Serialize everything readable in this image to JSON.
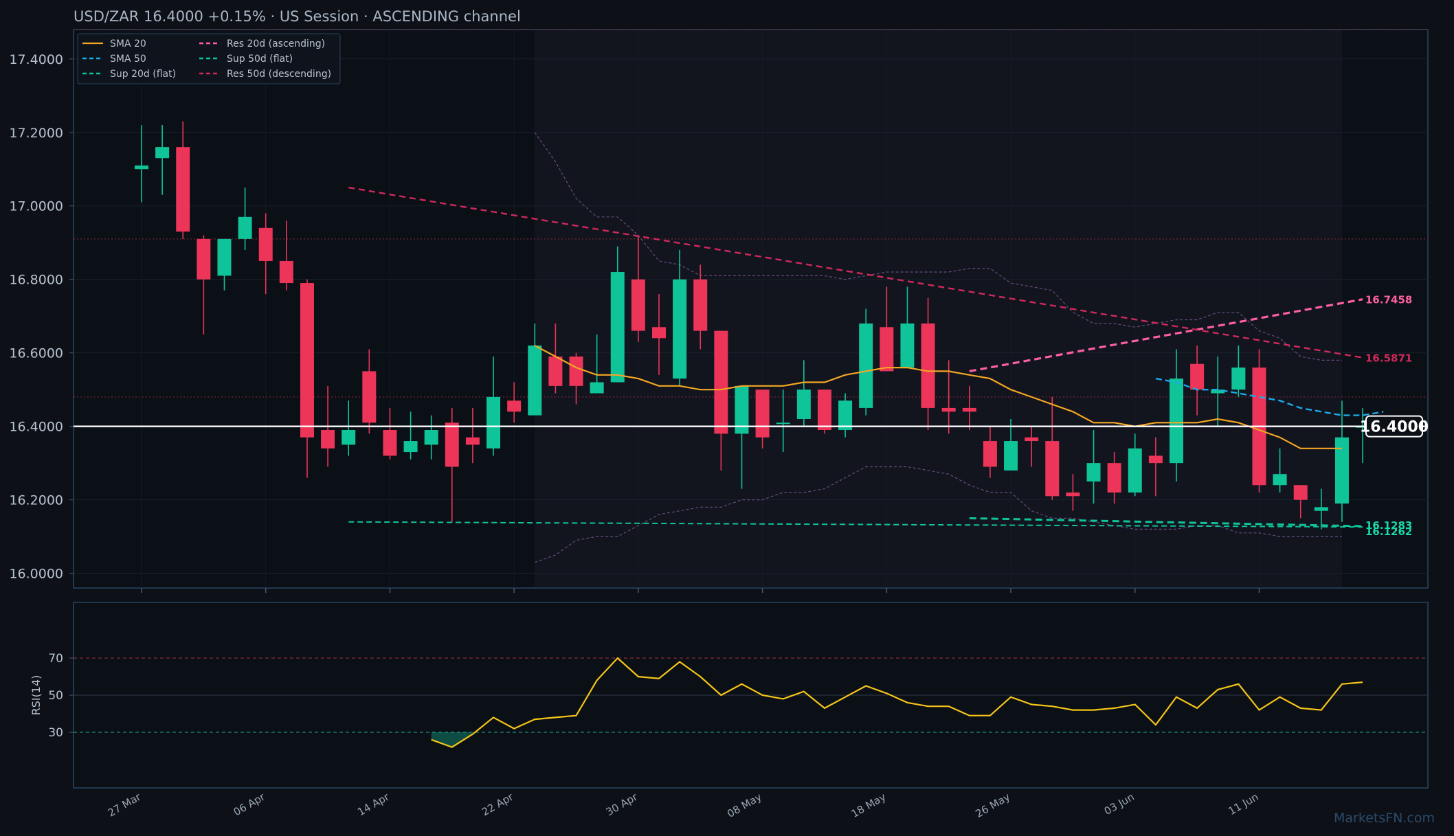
{
  "header": {
    "title": "USD/ZAR   16.4000   +0.15%  ·  US Session  ·  ASCENDING channel"
  },
  "watermark": "MarketsFN.com",
  "colors": {
    "background": "#0d1117",
    "panel_border": "#2a4560",
    "up_candle": "#10c49a",
    "down_candle": "#ec3558",
    "sma20": "#f5a623",
    "sma50": "#1ba9e8",
    "res20": "#ff5fa0",
    "res50": "#d0295c",
    "sup": "#10c49a",
    "rsi": "#f5c518",
    "band": "#7a5a9a",
    "price_line": "#ffffff"
  },
  "chart_data": [
    {
      "type": "candlestick",
      "instrument": "USD/ZAR",
      "last_price": "16.4000",
      "change": "+0.15%",
      "session": "US Session",
      "channel": "ASCENDING channel",
      "ylim": [
        15.96,
        17.48
      ],
      "y_ticks": [
        "16.0000",
        "16.2000",
        "16.4000",
        "16.6000",
        "16.8000",
        "17.0000",
        "17.2000",
        "17.4000"
      ],
      "y_tick_values": [
        16.0,
        16.2,
        16.4,
        16.6,
        16.8,
        17.0,
        17.2,
        17.4
      ],
      "x_ticks": [
        "27 Mar",
        "06 Apr",
        "14 Apr",
        "22 Apr",
        "30 Apr",
        "08 May",
        "18 May",
        "26 May",
        "03 Jun",
        "11 Jun"
      ],
      "x_tick_index": [
        0,
        6,
        12,
        18,
        24,
        30,
        36,
        42,
        48,
        54
      ],
      "candles": [
        {
          "o": 17.1,
          "h": 17.22,
          "l": 17.01,
          "c": 17.11
        },
        {
          "o": 17.13,
          "h": 17.22,
          "l": 17.03,
          "c": 17.16
        },
        {
          "o": 17.16,
          "h": 17.23,
          "l": 16.91,
          "c": 16.93
        },
        {
          "o": 16.91,
          "h": 16.92,
          "l": 16.65,
          "c": 16.8
        },
        {
          "o": 16.81,
          "h": 16.91,
          "l": 16.77,
          "c": 16.91
        },
        {
          "o": 16.91,
          "h": 17.05,
          "l": 16.88,
          "c": 16.97
        },
        {
          "o": 16.94,
          "h": 16.98,
          "l": 16.76,
          "c": 16.85
        },
        {
          "o": 16.85,
          "h": 16.96,
          "l": 16.77,
          "c": 16.79
        },
        {
          "o": 16.79,
          "h": 16.8,
          "l": 16.26,
          "c": 16.37
        },
        {
          "o": 16.39,
          "h": 16.51,
          "l": 16.29,
          "c": 16.34
        },
        {
          "o": 16.35,
          "h": 16.47,
          "l": 16.32,
          "c": 16.39
        },
        {
          "o": 16.55,
          "h": 16.61,
          "l": 16.38,
          "c": 16.41
        },
        {
          "o": 16.39,
          "h": 16.45,
          "l": 16.31,
          "c": 16.32
        },
        {
          "o": 16.33,
          "h": 16.44,
          "l": 16.31,
          "c": 16.36
        },
        {
          "o": 16.35,
          "h": 16.43,
          "l": 16.31,
          "c": 16.39
        },
        {
          "o": 16.41,
          "h": 16.45,
          "l": 16.14,
          "c": 16.29
        },
        {
          "o": 16.37,
          "h": 16.45,
          "l": 16.3,
          "c": 16.35
        },
        {
          "o": 16.34,
          "h": 16.59,
          "l": 16.32,
          "c": 16.48
        },
        {
          "o": 16.47,
          "h": 16.52,
          "l": 16.41,
          "c": 16.44
        },
        {
          "o": 16.43,
          "h": 16.68,
          "l": 16.43,
          "c": 16.62
        },
        {
          "o": 16.59,
          "h": 16.68,
          "l": 16.49,
          "c": 16.51
        },
        {
          "o": 16.59,
          "h": 16.6,
          "l": 16.46,
          "c": 16.51
        },
        {
          "o": 16.49,
          "h": 16.65,
          "l": 16.49,
          "c": 16.52
        },
        {
          "o": 16.52,
          "h": 16.89,
          "l": 16.52,
          "c": 16.82
        },
        {
          "o": 16.8,
          "h": 16.92,
          "l": 16.63,
          "c": 16.66
        },
        {
          "o": 16.67,
          "h": 16.76,
          "l": 16.54,
          "c": 16.64
        },
        {
          "o": 16.53,
          "h": 16.88,
          "l": 16.51,
          "c": 16.8
        },
        {
          "o": 16.8,
          "h": 16.84,
          "l": 16.61,
          "c": 16.66
        },
        {
          "o": 16.66,
          "h": 16.66,
          "l": 16.28,
          "c": 16.38
        },
        {
          "o": 16.38,
          "h": 16.51,
          "l": 16.23,
          "c": 16.51
        },
        {
          "o": 16.5,
          "h": 16.5,
          "l": 16.34,
          "c": 16.37
        },
        {
          "o": 16.41,
          "h": 16.5,
          "l": 16.33,
          "c": 16.41
        },
        {
          "o": 16.42,
          "h": 16.58,
          "l": 16.4,
          "c": 16.5
        },
        {
          "o": 16.5,
          "h": 16.5,
          "l": 16.38,
          "c": 16.39
        },
        {
          "o": 16.39,
          "h": 16.49,
          "l": 16.37,
          "c": 16.47
        },
        {
          "o": 16.45,
          "h": 16.72,
          "l": 16.43,
          "c": 16.68
        },
        {
          "o": 16.67,
          "h": 16.78,
          "l": 16.55,
          "c": 16.55
        },
        {
          "o": 16.56,
          "h": 16.78,
          "l": 16.56,
          "c": 16.68
        },
        {
          "o": 16.68,
          "h": 16.75,
          "l": 16.39,
          "c": 16.45
        },
        {
          "o": 16.45,
          "h": 16.58,
          "l": 16.38,
          "c": 16.44
        },
        {
          "o": 16.45,
          "h": 16.51,
          "l": 16.39,
          "c": 16.44
        },
        {
          "o": 16.36,
          "h": 16.4,
          "l": 16.26,
          "c": 16.29
        },
        {
          "o": 16.28,
          "h": 16.42,
          "l": 16.28,
          "c": 16.36
        },
        {
          "o": 16.37,
          "h": 16.4,
          "l": 16.29,
          "c": 16.36
        },
        {
          "o": 16.36,
          "h": 16.48,
          "l": 16.2,
          "c": 16.21
        },
        {
          "o": 16.22,
          "h": 16.27,
          "l": 16.17,
          "c": 16.21
        },
        {
          "o": 16.25,
          "h": 16.39,
          "l": 16.19,
          "c": 16.3
        },
        {
          "o": 16.3,
          "h": 16.33,
          "l": 16.19,
          "c": 16.22
        },
        {
          "o": 16.22,
          "h": 16.38,
          "l": 16.21,
          "c": 16.34
        },
        {
          "o": 16.32,
          "h": 16.37,
          "l": 16.21,
          "c": 16.3
        },
        {
          "o": 16.3,
          "h": 16.61,
          "l": 16.25,
          "c": 16.53
        },
        {
          "o": 16.57,
          "h": 16.62,
          "l": 16.43,
          "c": 16.5
        },
        {
          "o": 16.49,
          "h": 16.59,
          "l": 16.4,
          "c": 16.5
        },
        {
          "o": 16.5,
          "h": 16.62,
          "l": 16.48,
          "c": 16.56
        },
        {
          "o": 16.56,
          "h": 16.61,
          "l": 16.22,
          "c": 16.24
        },
        {
          "o": 16.24,
          "h": 16.34,
          "l": 16.22,
          "c": 16.27
        },
        {
          "o": 16.24,
          "h": 16.24,
          "l": 16.15,
          "c": 16.2
        },
        {
          "o": 16.17,
          "h": 16.23,
          "l": 16.12,
          "c": 16.18
        },
        {
          "o": 16.19,
          "h": 16.47,
          "l": 16.14,
          "c": 16.37
        },
        {
          "o": 16.4,
          "h": 16.45,
          "l": 16.3,
          "c": 16.4
        }
      ],
      "sma20": {
        "start_index": 19,
        "values": [
          16.62,
          16.59,
          16.56,
          16.54,
          16.54,
          16.53,
          16.51,
          16.51,
          16.5,
          16.5,
          16.51,
          16.51,
          16.51,
          16.52,
          16.52,
          16.54,
          16.55,
          16.56,
          16.56,
          16.55,
          16.55,
          16.54,
          16.53,
          16.5,
          16.48,
          16.46,
          16.44,
          16.41,
          16.41,
          16.4,
          16.41,
          16.41,
          16.41,
          16.42,
          16.41,
          16.39,
          16.37,
          16.34,
          16.34,
          16.34
        ]
      },
      "sma50": {
        "start_index": 49,
        "values": [
          16.53,
          16.52,
          16.5,
          16.5,
          16.49,
          16.48,
          16.47,
          16.45,
          16.44,
          16.43,
          16.43,
          16.44
        ]
      },
      "bands": {
        "start_index": 19,
        "upper": [
          17.2,
          17.12,
          17.02,
          16.97,
          16.97,
          16.92,
          16.85,
          16.84,
          16.81,
          16.81,
          16.81,
          16.81,
          16.81,
          16.81,
          16.81,
          16.8,
          16.81,
          16.82,
          16.82,
          16.82,
          16.82,
          16.83,
          16.83,
          16.79,
          16.78,
          16.77,
          16.71,
          16.68,
          16.68,
          16.67,
          16.68,
          16.69,
          16.69,
          16.71,
          16.71,
          16.66,
          16.64,
          16.59,
          16.58,
          16.58
        ],
        "lower": [
          16.03,
          16.05,
          16.09,
          16.1,
          16.1,
          16.13,
          16.16,
          16.17,
          16.18,
          16.18,
          16.2,
          16.2,
          16.22,
          16.22,
          16.23,
          16.26,
          16.29,
          16.29,
          16.29,
          16.28,
          16.27,
          16.24,
          16.22,
          16.22,
          16.17,
          16.15,
          16.15,
          16.14,
          16.13,
          16.12,
          16.12,
          16.12,
          16.13,
          16.13,
          16.11,
          16.11,
          16.1,
          16.1,
          16.1,
          16.1
        ]
      },
      "lines": [
        {
          "name": "Res 20d (ascending)",
          "from_index": 40,
          "to_index": 59,
          "from_value": 16.55,
          "to_value": 16.7458,
          "end_label": "16.7458"
        },
        {
          "name": "Res 50d (descending)",
          "from_index": 10,
          "to_index": 59,
          "from_value": 17.05,
          "to_value": 16.5871,
          "end_label": "16.5871"
        },
        {
          "name": "Sup 20d (flat)",
          "from_index": 40,
          "to_index": 59,
          "from_value": 16.15,
          "to_value": 16.1283,
          "end_label": "16.1283"
        },
        {
          "name": "Sup 50d (flat)",
          "from_index": 10,
          "to_index": 59,
          "from_value": 16.14,
          "to_value": 16.1262,
          "end_label": "16.1262"
        }
      ],
      "horizontal_levels": [
        17.48,
        16.91,
        16.48
      ],
      "current_price_line": 16.4,
      "price_tag": "16.4000",
      "legend": [
        {
          "label": "SMA 20",
          "style": "solid",
          "color": "#f5a623"
        },
        {
          "label": "SMA 50",
          "style": "dashed",
          "color": "#1ba9e8"
        },
        {
          "label": "Sup 20d (flat)",
          "style": "dashed",
          "color": "#10c49a"
        },
        {
          "label": "Res 20d (ascending)",
          "style": "dashed",
          "color": "#ff5fa0"
        },
        {
          "label": "Sup 50d (flat)",
          "style": "dashed",
          "color": "#10c49a"
        },
        {
          "label": "Res 50d (descending)",
          "style": "dashed",
          "color": "#d0295c"
        }
      ],
      "legend_position": "top-left"
    },
    {
      "type": "line",
      "ylabel": "RSI(14)",
      "ylim": [
        0,
        100
      ],
      "y_ticks": [
        "30",
        "50",
        "70"
      ],
      "y_tick_values": [
        30,
        50,
        70
      ],
      "reference_lines": [
        30,
        50,
        70
      ],
      "start_index": 14,
      "values": [
        26,
        22,
        29,
        38,
        32,
        37,
        38,
        39,
        58,
        70,
        60,
        59,
        68,
        60,
        50,
        56,
        50,
        48,
        52,
        43,
        49,
        55,
        51,
        46,
        44,
        44,
        39,
        39,
        49,
        45,
        44,
        42,
        42,
        43,
        45,
        34,
        49,
        43,
        53,
        56,
        42,
        49,
        43,
        42,
        56,
        57
      ]
    }
  ]
}
